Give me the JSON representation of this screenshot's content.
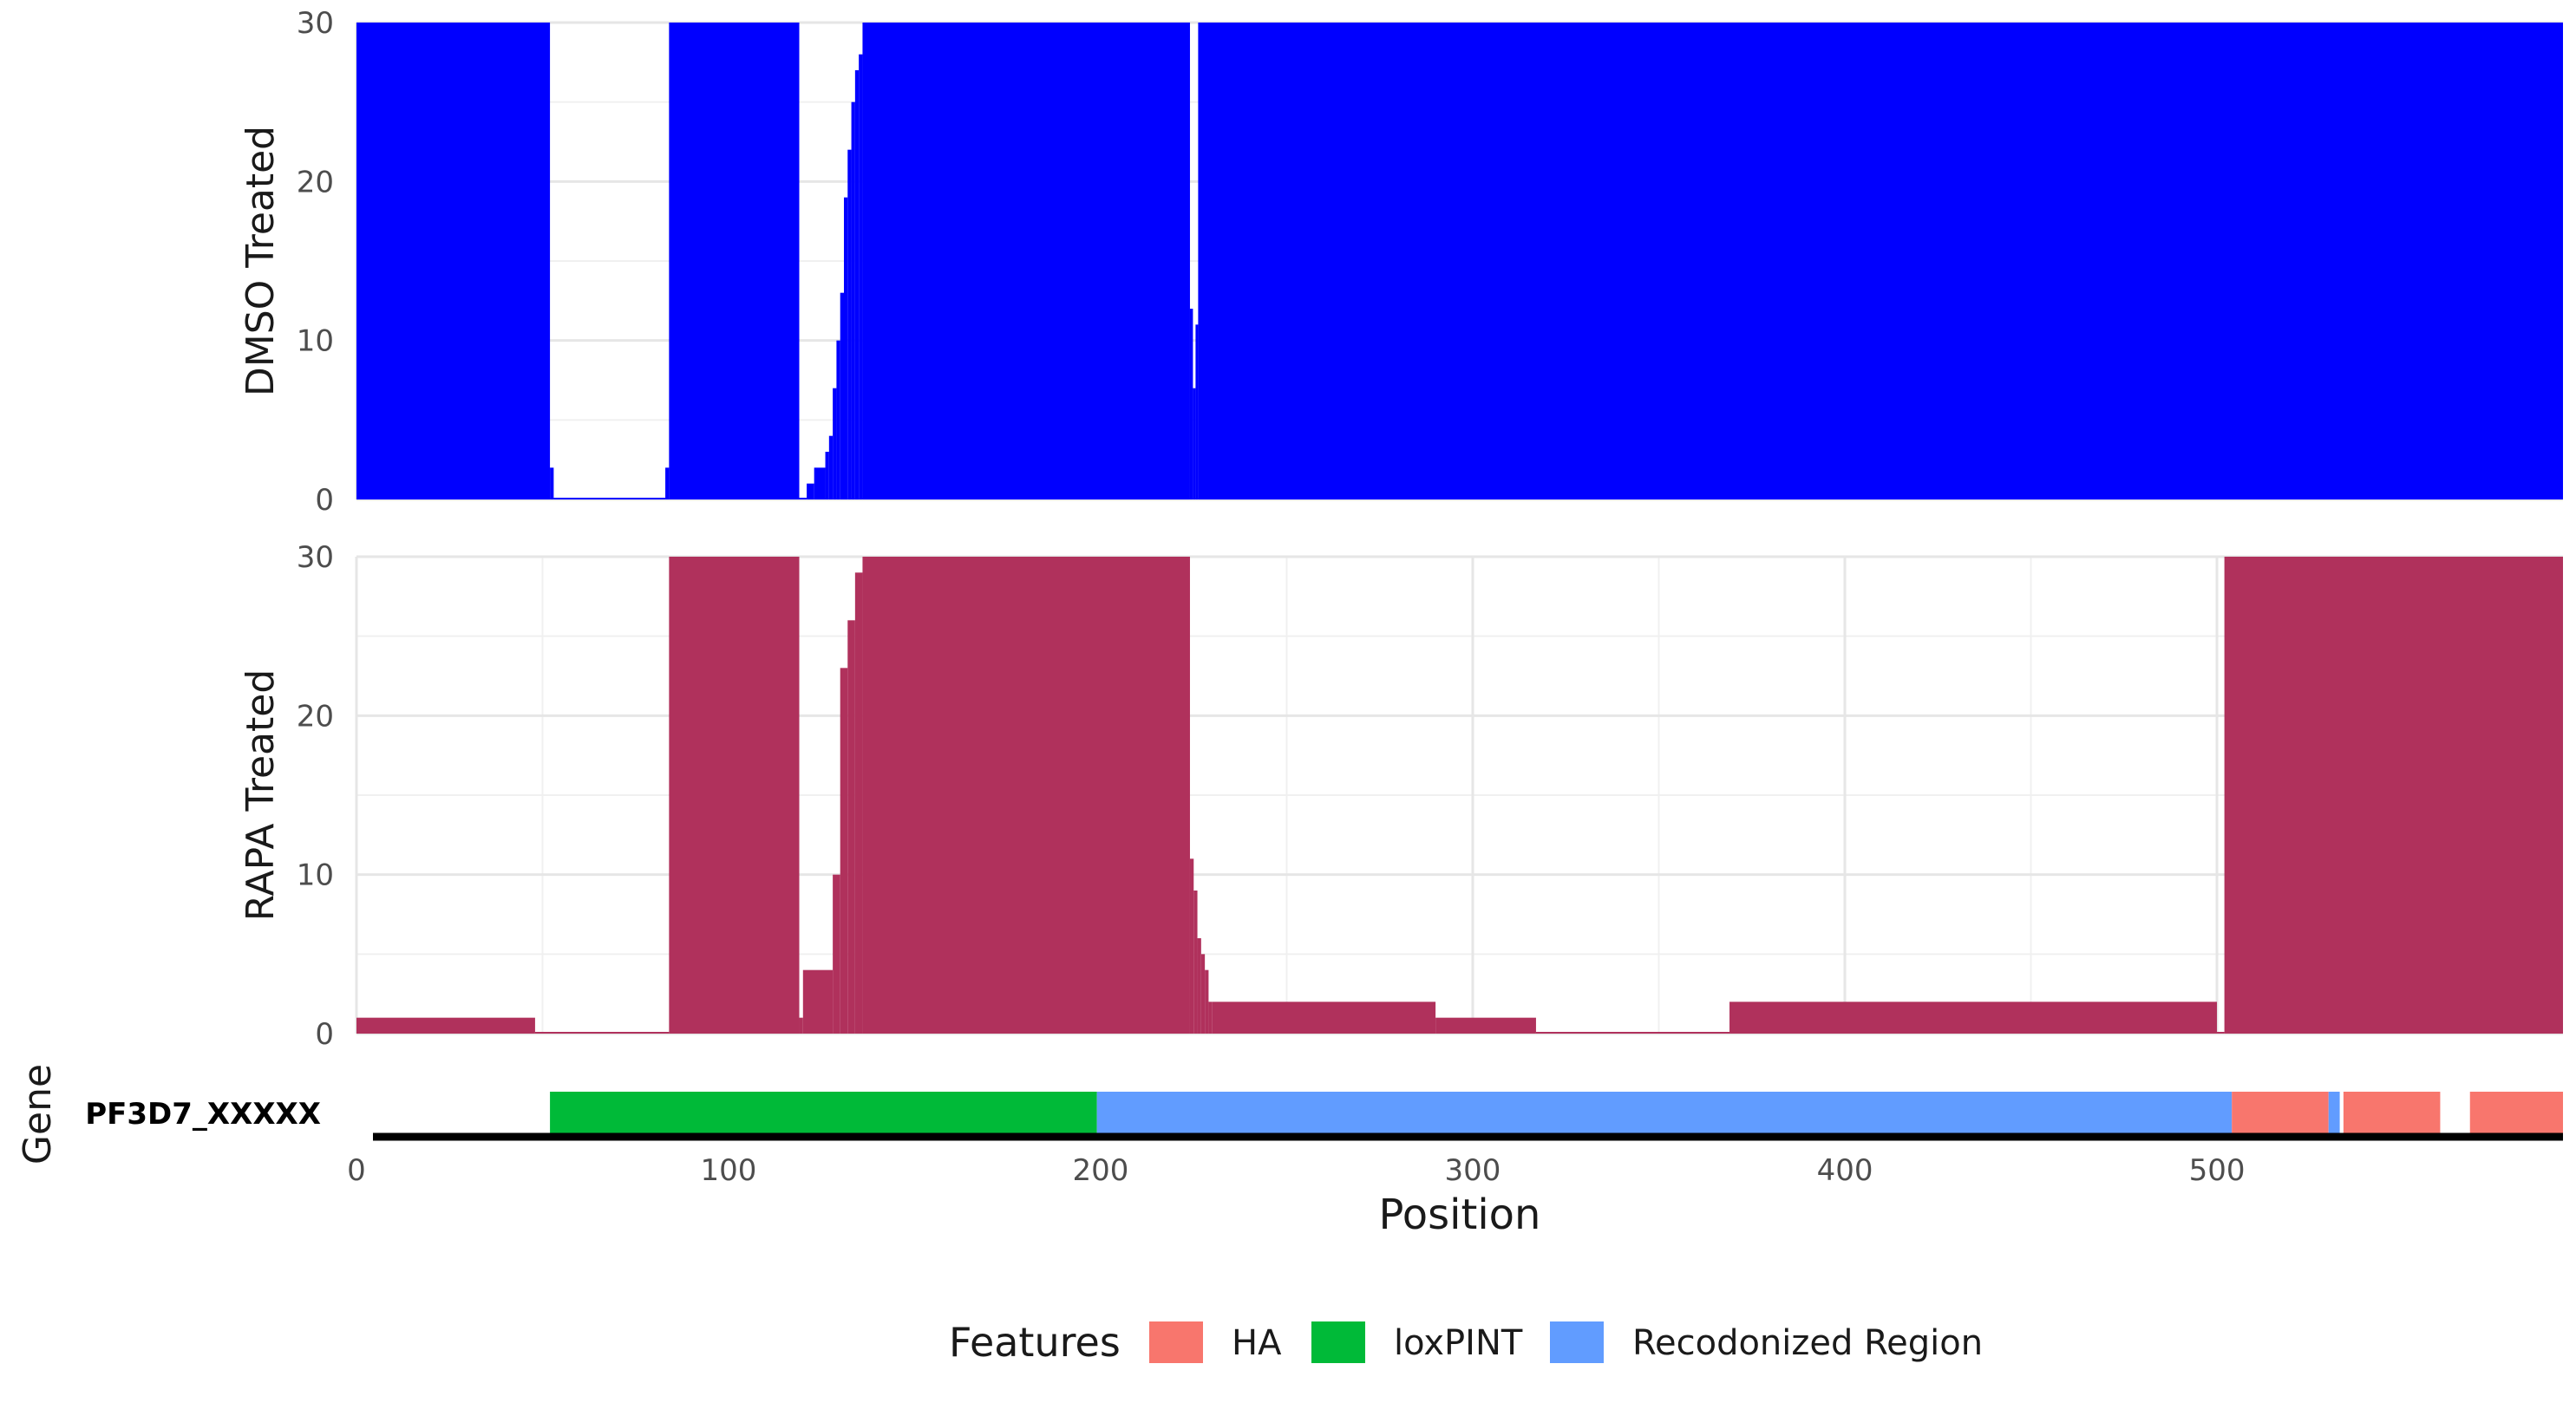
{
  "chart_data": {
    "type": "area",
    "x_axis": {
      "title": "Position",
      "range": [
        0,
        593
      ],
      "ticks": [
        0,
        100,
        200,
        300,
        400,
        500
      ],
      "tick_labels": [
        "0",
        "100",
        "200",
        "300",
        "400",
        "500"
      ]
    },
    "y_axis": {
      "range": [
        0,
        30
      ],
      "ticks": [
        0,
        10,
        20,
        30
      ],
      "tick_labels": [
        "0",
        "10",
        "20",
        "30"
      ]
    },
    "grid": true,
    "panels": [
      {
        "label": "DMSO Treated",
        "color": "#0000ff",
        "coverage": [
          [
            0,
            52,
            30
          ],
          [
            52,
            53,
            2
          ],
          [
            53,
            83,
            0
          ],
          [
            83,
            84,
            2
          ],
          [
            84,
            119,
            30
          ],
          [
            119,
            121,
            0
          ],
          [
            121,
            123,
            1
          ],
          [
            123,
            126,
            2
          ],
          [
            126,
            127,
            3
          ],
          [
            127,
            128,
            4
          ],
          [
            128,
            129,
            7
          ],
          [
            129,
            130,
            10
          ],
          [
            130,
            131,
            13
          ],
          [
            131,
            132,
            19
          ],
          [
            132,
            133,
            22
          ],
          [
            133,
            134,
            25
          ],
          [
            134,
            135,
            27
          ],
          [
            135,
            136,
            28
          ],
          [
            136,
            224,
            30
          ],
          [
            224,
            224.8,
            12
          ],
          [
            224.8,
            225.5,
            7
          ],
          [
            225.5,
            226.2,
            11
          ],
          [
            226.2,
            593,
            30
          ]
        ]
      },
      {
        "label": "RAPA Treated",
        "color": "#b0315c",
        "coverage": [
          [
            0,
            48,
            1
          ],
          [
            48,
            84,
            0
          ],
          [
            84,
            119,
            30
          ],
          [
            119,
            120,
            1
          ],
          [
            120,
            128,
            4
          ],
          [
            128,
            130,
            10
          ],
          [
            130,
            132,
            23
          ],
          [
            132,
            134,
            26
          ],
          [
            134,
            136,
            29
          ],
          [
            136,
            224,
            30
          ],
          [
            224,
            225,
            11
          ],
          [
            225,
            226,
            9
          ],
          [
            226,
            227,
            6
          ],
          [
            227,
            228,
            5
          ],
          [
            228,
            229,
            4
          ],
          [
            229,
            230,
            2
          ],
          [
            230,
            290,
            2
          ],
          [
            290,
            317,
            1
          ],
          [
            317,
            369,
            0
          ],
          [
            369,
            500,
            2
          ],
          [
            500,
            502,
            0
          ],
          [
            502,
            593,
            30
          ]
        ]
      }
    ],
    "gene_track": {
      "label": "Gene",
      "gene_name": "PF3D7_XXXXX",
      "features": [
        {
          "type": "loxPINT",
          "start": 52,
          "end": 199
        },
        {
          "type": "Recodonized Region",
          "start": 199,
          "end": 504
        },
        {
          "type": "HA",
          "start": 504,
          "end": 530
        },
        {
          "type": "Recodonized Region",
          "start": 530,
          "end": 533
        },
        {
          "type": "HA",
          "start": 534,
          "end": 560
        },
        {
          "type": "HA",
          "start": 568,
          "end": 593
        }
      ]
    },
    "legend": {
      "title": "Features",
      "position": "bottom",
      "entries": [
        {
          "label": "HA",
          "color": "#f8766d"
        },
        {
          "label": "loxPINT",
          "color": "#00ba38"
        },
        {
          "label": "Recodonized Region",
          "color": "#619cff"
        }
      ]
    }
  }
}
